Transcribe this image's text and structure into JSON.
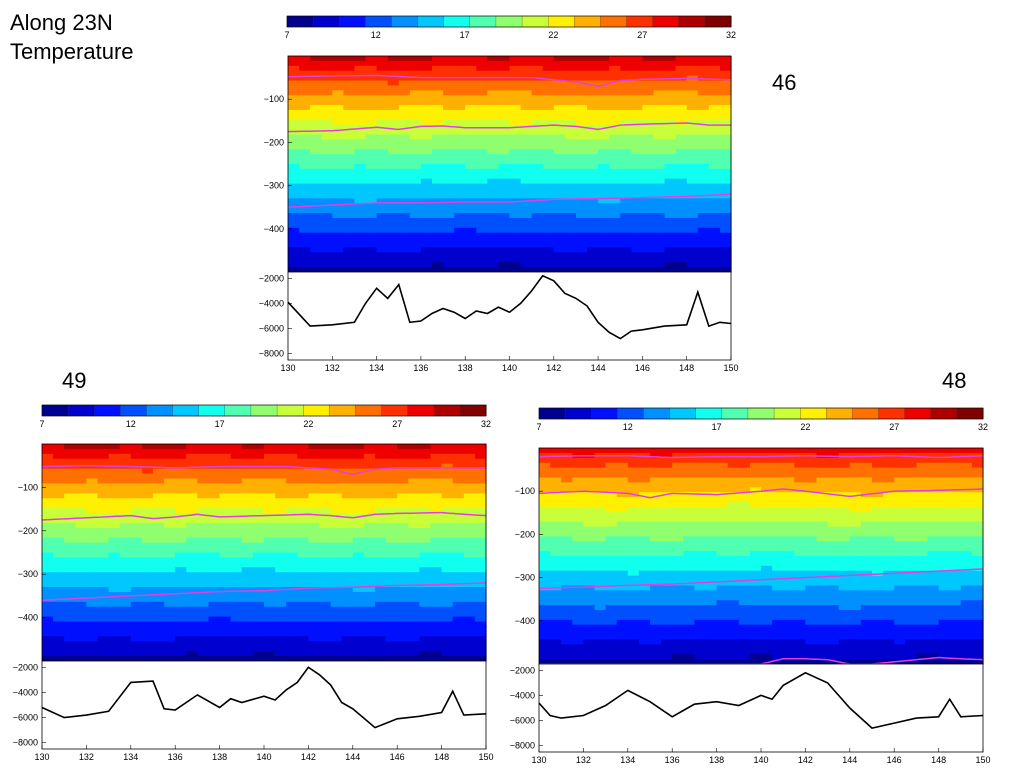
{
  "slide": {
    "title_line1": "Along 23N",
    "title_line2": "Temperature"
  },
  "colorscale": {
    "ticks": [
      7,
      12,
      17,
      22,
      27,
      32
    ],
    "colors": [
      "#00008f",
      "#0000cf",
      "#0010ff",
      "#0050ff",
      "#0090ff",
      "#00c8ff",
      "#10ffef",
      "#50ffaf",
      "#90ff6f",
      "#c8ff38",
      "#ffef00",
      "#ffb000",
      "#ff7000",
      "#ff3000",
      "#ef0000",
      "#af0000",
      "#800000"
    ]
  },
  "chart_data": [
    {
      "type": "heatmap",
      "label": "46",
      "colorbar": {
        "min": 7,
        "max": 32,
        "ticks": [
          7,
          12,
          17,
          22,
          27,
          32
        ]
      },
      "temperature_section": {
        "x": [
          130,
          150
        ],
        "ylim": [
          -500,
          0
        ],
        "yticks": [
          -100,
          -200,
          -300,
          -400
        ],
        "surface_temp": 29.5,
        "bottom_temp": 8,
        "isotherm_depths": [
          {
            "x": [
              130,
              132,
              134,
              136,
              138,
              140,
              141,
              142,
              143,
              144,
              145,
              146,
              148,
              150
            ],
            "depth": [
              -48,
              -46,
              -45,
              -50,
              -50,
              -50,
              -50,
              -55,
              -60,
              -70,
              -57,
              -54,
              -52,
              -55
            ]
          },
          {
            "x": [
              130,
              132,
              134,
              135,
              136,
              137,
              138,
              140,
              142,
              143,
              144,
              145,
              146,
              148,
              149,
              150
            ],
            "depth": [
              -175,
              -173,
              -165,
              -170,
              -163,
              -162,
              -166,
              -166,
              -160,
              -163,
              -170,
              -160,
              -158,
              -155,
              -160,
              -160
            ]
          },
          {
            "x": [
              130,
              132,
              134,
              136,
              138,
              140,
              141,
              142,
              144,
              146,
              148,
              150
            ],
            "depth": [
              -350,
              -345,
              -340,
              -340,
              -338,
              -338,
              -335,
              -332,
              -330,
              -328,
              -325,
              -320
            ]
          }
        ]
      },
      "bathymetry": {
        "x": [
          130,
          131,
          132,
          133,
          133.5,
          134,
          134.5,
          135,
          135.5,
          136,
          136.5,
          137,
          137.5,
          138,
          138.5,
          139,
          139.5,
          140,
          140.5,
          141,
          141.5,
          142,
          142.5,
          143,
          143.5,
          144,
          144.5,
          145,
          145.5,
          146,
          147,
          148,
          148.5,
          149,
          149.5,
          150
        ],
        "depth": [
          -3900,
          -5800,
          -5700,
          -5500,
          -4000,
          -2800,
          -3600,
          -2500,
          -5500,
          -5400,
          -4800,
          -4400,
          -4700,
          -5200,
          -4600,
          -4800,
          -4300,
          -4700,
          -4000,
          -3000,
          -1800,
          -2200,
          -3200,
          -3600,
          -4200,
          -5500,
          -6300,
          -6800,
          -6200,
          -6100,
          -5800,
          -5700,
          -3100,
          -5800,
          -5500,
          -5600
        ],
        "xlim": [
          130,
          150
        ],
        "ylim": [
          -8500,
          -1500
        ],
        "yticks": [
          -2000,
          -4000,
          -6000,
          -8000
        ],
        "xticks": [
          130,
          132,
          134,
          136,
          138,
          140,
          142,
          144,
          146,
          148,
          150
        ]
      }
    },
    {
      "type": "heatmap",
      "label": "49",
      "colorbar": {
        "min": 7,
        "max": 32,
        "ticks": [
          7,
          12,
          17,
          22,
          27,
          32
        ]
      },
      "temperature_section": {
        "x": [
          130,
          150
        ],
        "ylim": [
          -500,
          0
        ],
        "yticks": [
          -100,
          -200,
          -300,
          -400
        ],
        "surface_temp": 29.5,
        "bottom_temp": 8,
        "isotherm_depths": [
          {
            "x": [
              130,
              132,
              134,
              136,
              138,
              140,
              141,
              142,
              143,
              144,
              145,
              146,
              148,
              150
            ],
            "depth": [
              -52,
              -50,
              -52,
              -55,
              -52,
              -52,
              -52,
              -55,
              -58,
              -70,
              -58,
              -55,
              -55,
              -55
            ]
          },
          {
            "x": [
              130,
              132,
              134,
              135,
              136,
              137,
              138,
              140,
              142,
              143,
              144,
              145,
              146,
              148,
              149,
              150
            ],
            "depth": [
              -175,
              -170,
              -165,
              -172,
              -168,
              -162,
              -168,
              -165,
              -162,
              -165,
              -170,
              -162,
              -160,
              -158,
              -162,
              -165
            ]
          },
          {
            "x": [
              130,
              132,
              134,
              136,
              138,
              140,
              142,
              144,
              146,
              148,
              150
            ],
            "depth": [
              -360,
              -355,
              -350,
              -345,
              -340,
              -338,
              -332,
              -330,
              -326,
              -324,
              -320
            ]
          }
        ]
      },
      "bathymetry": {
        "x": [
          130,
          131,
          132,
          133,
          134,
          135,
          135.5,
          136,
          137,
          138,
          138.5,
          139,
          140,
          140.5,
          141,
          141.5,
          142,
          142.5,
          143,
          143.5,
          144,
          145,
          146,
          147,
          148,
          148.5,
          149,
          150
        ],
        "depth": [
          -5200,
          -6000,
          -5800,
          -5500,
          -3200,
          -3100,
          -5300,
          -5400,
          -4200,
          -5200,
          -4500,
          -4800,
          -4300,
          -4600,
          -3800,
          -3200,
          -2000,
          -2600,
          -3400,
          -4800,
          -5300,
          -6800,
          -6100,
          -5900,
          -5600,
          -3900,
          -5800,
          -5700
        ],
        "xlim": [
          130,
          150
        ],
        "ylim": [
          -8500,
          -1500
        ],
        "yticks": [
          -2000,
          -4000,
          -6000,
          -8000
        ],
        "xticks": [
          130,
          132,
          134,
          136,
          138,
          140,
          142,
          144,
          146,
          148,
          150
        ]
      }
    },
    {
      "type": "heatmap",
      "label": "48",
      "colorbar": {
        "min": 7,
        "max": 32,
        "ticks": [
          7,
          12,
          17,
          22,
          27,
          32
        ]
      },
      "temperature_section": {
        "x": [
          130,
          150
        ],
        "ylim": [
          -500,
          0
        ],
        "yticks": [
          -100,
          -200,
          -300,
          -400
        ],
        "surface_temp": 28.5,
        "bottom_temp": 8,
        "isotherm_depths": [
          {
            "x": [
              130,
              132,
              134,
              136,
              138,
              140,
              142,
              144,
              146,
              148,
              150
            ],
            "depth": [
              -20,
              -18,
              -18,
              -22,
              -20,
              -20,
              -18,
              -20,
              -18,
              -22,
              -18
            ]
          },
          {
            "x": [
              130,
              132,
              134,
              135,
              136,
              138,
              140,
              141,
              142,
              144,
              146,
              148,
              150
            ],
            "depth": [
              -105,
              -100,
              -105,
              -115,
              -105,
              -108,
              -100,
              -95,
              -100,
              -112,
              -100,
              -98,
              -95
            ]
          },
          {
            "x": [
              130,
              132,
              134,
              136,
              138,
              140,
              142,
              144,
              146,
              148,
              150
            ],
            "depth": [
              -325,
              -322,
              -318,
              -315,
              -310,
              -305,
              -300,
              -295,
              -290,
              -285,
              -280
            ]
          },
          {
            "x": [
              140,
              141,
              142,
              143,
              144,
              145,
              146,
              147,
              148,
              149,
              150
            ],
            "depth": [
              -500,
              -488,
              -488,
              -490,
              -500,
              -500,
              -495,
              -490,
              -485,
              -488,
              -490
            ]
          }
        ]
      },
      "bathymetry": {
        "x": [
          130,
          130.5,
          131,
          132,
          133,
          134,
          135,
          136,
          136.5,
          137,
          138,
          139,
          140,
          140.5,
          141,
          142,
          143,
          144,
          145,
          145.5,
          146,
          147,
          148,
          148.5,
          149,
          150
        ],
        "depth": [
          -4600,
          -5600,
          -5800,
          -5600,
          -4800,
          -3600,
          -4500,
          -5700,
          -5200,
          -4700,
          -4500,
          -4800,
          -4000,
          -4300,
          -3200,
          -2200,
          -3000,
          -5000,
          -6600,
          -6400,
          -6200,
          -5800,
          -5700,
          -4300,
          -5700,
          -5600
        ],
        "xlim": [
          130,
          150
        ],
        "ylim": [
          -8500,
          -1500
        ],
        "yticks": [
          -2000,
          -4000,
          -6000,
          -8000
        ],
        "xticks": [
          130,
          132,
          134,
          136,
          138,
          140,
          142,
          144,
          146,
          148,
          150
        ]
      }
    }
  ]
}
